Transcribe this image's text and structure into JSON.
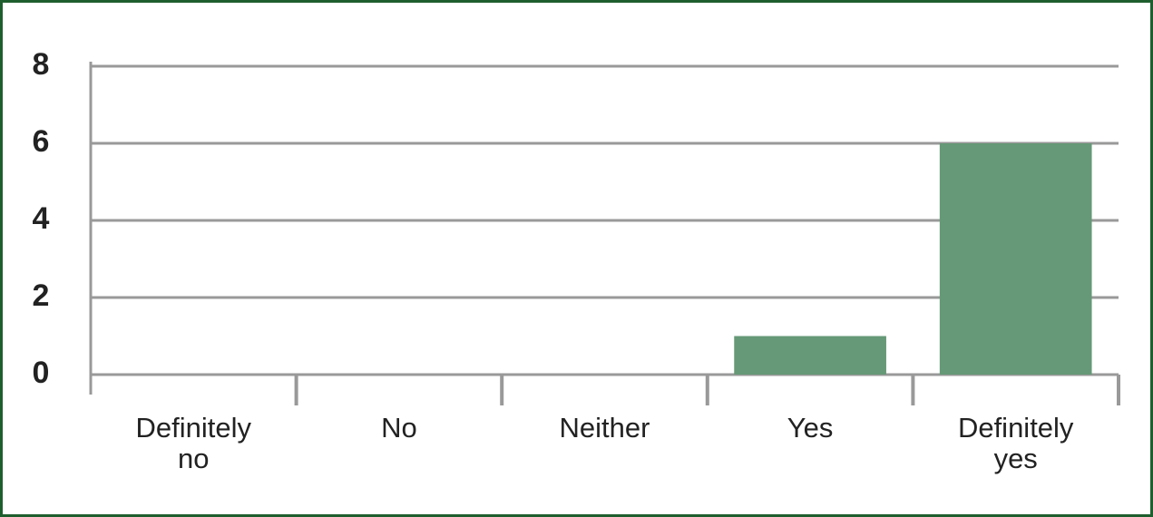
{
  "chart_data": {
    "type": "bar",
    "categories": [
      "Definitely no",
      "No",
      "Neither",
      "Yes",
      "Definitely yes"
    ],
    "values": [
      0,
      0,
      0,
      1,
      6
    ],
    "color": "#669977",
    "ylim": [
      0,
      8
    ],
    "yticks": [
      0,
      2,
      4,
      6,
      8
    ],
    "grid": true
  }
}
